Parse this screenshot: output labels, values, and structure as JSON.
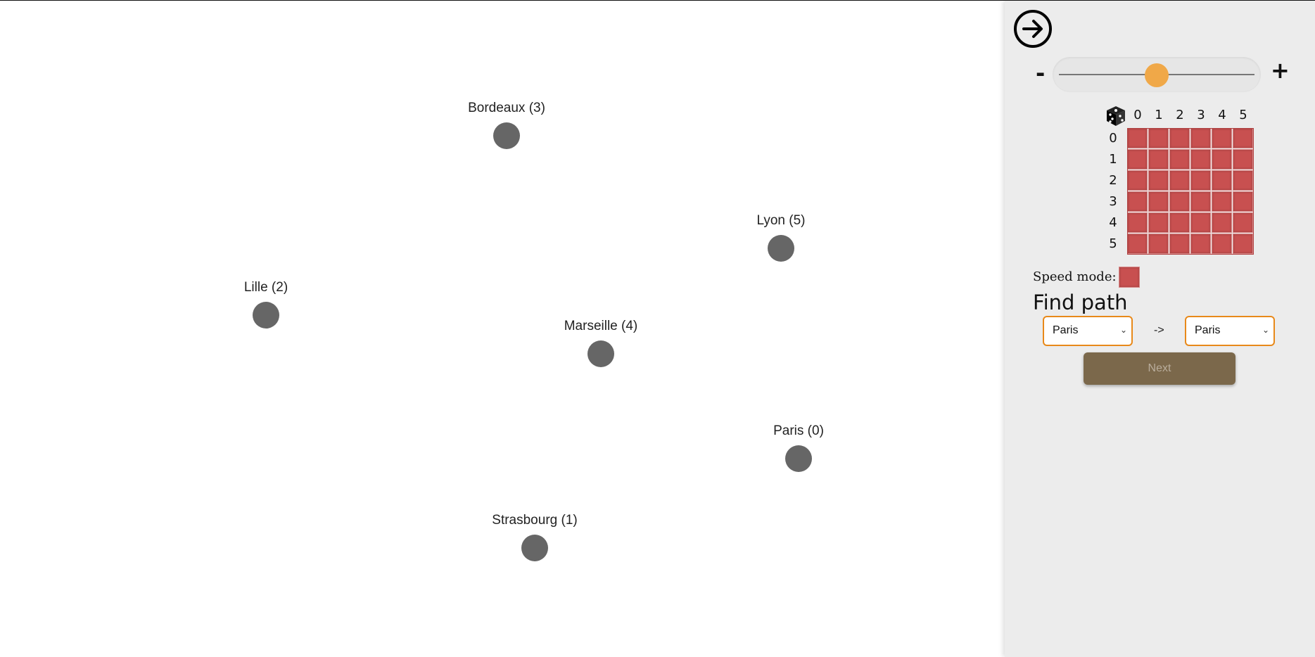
{
  "graph": {
    "nodes": [
      {
        "id": 3,
        "label": "Bordeaux (3)"
      },
      {
        "id": 5,
        "label": "Lyon (5)"
      },
      {
        "id": 2,
        "label": "Lille (2)"
      },
      {
        "id": 4,
        "label": "Marseille (4)"
      },
      {
        "id": 0,
        "label": "Paris (0)"
      },
      {
        "id": 1,
        "label": "Strasbourg (1)"
      }
    ]
  },
  "panel": {
    "collapse_icon": "arrow-right-circle-icon",
    "zoom": {
      "minus": "-",
      "plus": "+",
      "level_fraction": 0.5
    },
    "matrix": {
      "dice_icon": "dice-icon",
      "col_headers": [
        "0",
        "1",
        "2",
        "3",
        "4",
        "5"
      ],
      "row_headers": [
        "0",
        "1",
        "2",
        "3",
        "4",
        "5"
      ],
      "cell_color": "#c85050"
    },
    "speed_mode_label": "Speed mode:",
    "find_path_title": "Find path",
    "from_value": "Paris",
    "arrow": "->",
    "to_value": "Paris",
    "next_label": "Next"
  },
  "colors": {
    "node": "#666666",
    "accent": "#e8891a",
    "slider_thumb": "#f0a848",
    "next_button": "#7b684b"
  }
}
